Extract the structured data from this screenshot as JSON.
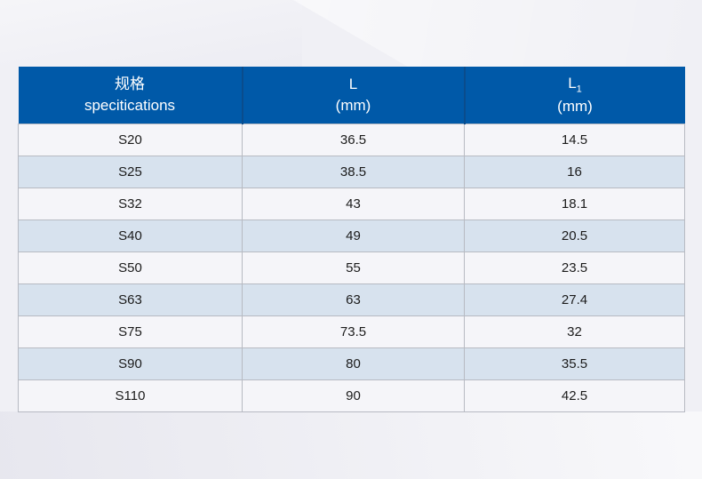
{
  "colors": {
    "header_bg": "#0059a8",
    "header_divider": "#0a4c8c",
    "header_text": "#ffffff",
    "row_odd_bg": "#f5f5f9",
    "row_even_bg": "#d7e2ee",
    "cell_border": "#b7bac2",
    "body_text": "#1b1b1b",
    "page_bg": "#f0f0f5"
  },
  "table": {
    "header": {
      "spec_cn": "规格",
      "spec_en": "specitications",
      "l_label": "L",
      "l_unit": "(mm)",
      "l1_label": "L",
      "l1_sub": "1",
      "l1_unit": "(mm)"
    },
    "rows": [
      {
        "spec": "S20",
        "l": "36.5",
        "l1": "14.5"
      },
      {
        "spec": "S25",
        "l": "38.5",
        "l1": "16"
      },
      {
        "spec": "S32",
        "l": "43",
        "l1": "18.1"
      },
      {
        "spec": "S40",
        "l": "49",
        "l1": "20.5"
      },
      {
        "spec": "S50",
        "l": "55",
        "l1": "23.5"
      },
      {
        "spec": "S63",
        "l": "63",
        "l1": "27.4"
      },
      {
        "spec": "S75",
        "l": "73.5",
        "l1": "32"
      },
      {
        "spec": "S90",
        "l": "80",
        "l1": "35.5"
      },
      {
        "spec": "S110",
        "l": "90",
        "l1": "42.5"
      }
    ]
  }
}
